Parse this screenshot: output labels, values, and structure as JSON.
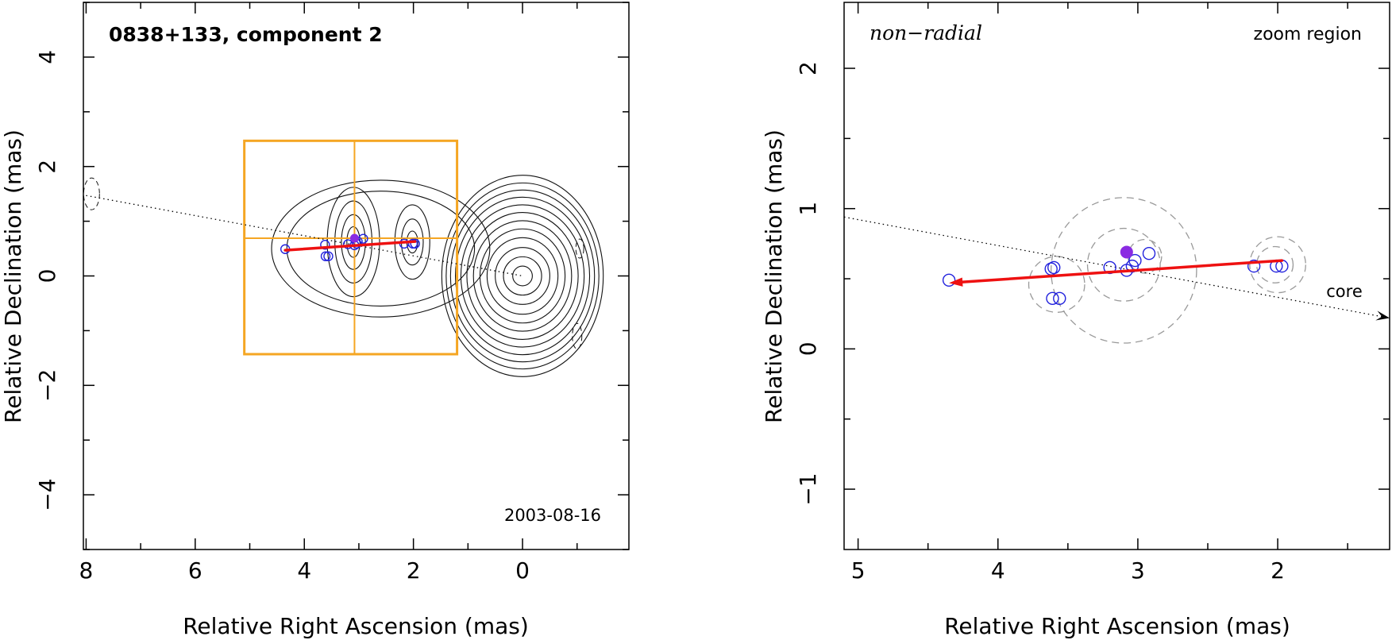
{
  "colors": {
    "track": "#ee1111",
    "component": "#2222dd",
    "mean_position": "#8a2be2",
    "zoom_box": "#f5a623",
    "contour": "#111111",
    "error_circle": "#9a9a9a"
  },
  "chart_data": [
    {
      "type": "scatter",
      "panel": "left",
      "title": "0838+133, component 2",
      "date": "2003-08-16",
      "xlabel": "Relative Right Ascension (mas)",
      "ylabel": "Relative Declination (mas)",
      "xlim": [
        8.05,
        -1.95
      ],
      "ylim": [
        -5,
        5
      ],
      "xticks": [
        8,
        6,
        4,
        2,
        0
      ],
      "yticks": [
        4,
        2,
        0,
        -2,
        -4
      ],
      "xtick_labels": [
        "8",
        "6",
        "4",
        "2",
        "0"
      ],
      "ytick_labels": [
        "4",
        "2",
        "0",
        "−2",
        "−4"
      ],
      "component_positions": [
        {
          "x": 4.35,
          "y": 0.49
        },
        {
          "x": 3.62,
          "y": 0.57
        },
        {
          "x": 3.61,
          "y": 0.36
        },
        {
          "x": 3.56,
          "y": 0.36
        },
        {
          "x": 3.2,
          "y": 0.58
        },
        {
          "x": 3.08,
          "y": 0.56
        },
        {
          "x": 3.04,
          "y": 0.59
        },
        {
          "x": 3.02,
          "y": 0.63
        },
        {
          "x": 2.92,
          "y": 0.68
        },
        {
          "x": 2.17,
          "y": 0.59
        },
        {
          "x": 2.01,
          "y": 0.59
        },
        {
          "x": 1.97,
          "y": 0.59
        }
      ],
      "mean_position": {
        "x": 3.08,
        "y": 0.69
      },
      "trajectory_arrow": {
        "from": {
          "x": 1.97,
          "y": 0.63
        },
        "to": {
          "x": 4.35,
          "y": 0.47
        }
      },
      "radial_line": {
        "from": {
          "x": 8.0,
          "y": 1.47
        },
        "to": {
          "x": 0.0,
          "y": 0.0
        }
      },
      "zoom_box": {
        "x0": 5.1,
        "x1": 1.2,
        "y0": -1.43,
        "y1": 2.47,
        "cross_x": 3.08,
        "cross_y": 0.69
      },
      "contour_groups": [
        {
          "cx": 0.0,
          "cy": 0.0,
          "rx": [
            0.18,
            0.35,
            0.5,
            0.65,
            0.78,
            0.9,
            1.02,
            1.13,
            1.23,
            1.32,
            1.4,
            1.48
          ],
          "ry": [
            0.18,
            0.35,
            0.52,
            0.7,
            0.86,
            1.01,
            1.16,
            1.3,
            1.44,
            1.57,
            1.7,
            1.84
          ]
        },
        {
          "cx": 3.1,
          "cy": 0.62,
          "rx": [
            0.12,
            0.22,
            0.34,
            0.48
          ],
          "ry": [
            0.28,
            0.5,
            0.75,
            1.0
          ]
        },
        {
          "cx": 2.02,
          "cy": 0.62,
          "rx": [
            0.1,
            0.2,
            0.32
          ],
          "ry": [
            0.2,
            0.42,
            0.68
          ]
        },
        {
          "cx": 2.6,
          "cy": 0.5,
          "rx": [
            1.72,
            2.0
          ],
          "ry": [
            1.05,
            1.25
          ]
        }
      ]
    },
    {
      "type": "scatter",
      "panel": "right",
      "title_left": "non−radial",
      "title_right": "zoom region",
      "core_label": "core",
      "xlabel": "Relative Right Ascension (mas)",
      "ylabel": "Relative Declination (mas)",
      "xlim": [
        5.1,
        1.2
      ],
      "ylim": [
        -1.43,
        2.47
      ],
      "xticks": [
        5,
        4,
        3,
        2
      ],
      "yticks": [
        2,
        1,
        0,
        -1
      ],
      "xtick_labels": [
        "5",
        "4",
        "3",
        "2"
      ],
      "ytick_labels": [
        "2",
        "1",
        "0",
        "−1"
      ],
      "component_positions": [
        {
          "x": 4.35,
          "y": 0.49
        },
        {
          "x": 3.62,
          "y": 0.57
        },
        {
          "x": 3.6,
          "y": 0.58
        },
        {
          "x": 3.61,
          "y": 0.36
        },
        {
          "x": 3.56,
          "y": 0.36
        },
        {
          "x": 3.2,
          "y": 0.58
        },
        {
          "x": 3.08,
          "y": 0.56
        },
        {
          "x": 3.04,
          "y": 0.59
        },
        {
          "x": 3.02,
          "y": 0.63
        },
        {
          "x": 2.92,
          "y": 0.68
        },
        {
          "x": 2.17,
          "y": 0.59
        },
        {
          "x": 2.01,
          "y": 0.59
        },
        {
          "x": 1.97,
          "y": 0.59
        }
      ],
      "error_circles": [
        {
          "x": 3.1,
          "y": 0.56,
          "r": 0.52
        },
        {
          "x": 3.1,
          "y": 0.6,
          "r": 0.26
        },
        {
          "x": 3.58,
          "y": 0.46,
          "r": 0.2
        },
        {
          "x": 2.95,
          "y": 0.66,
          "r": 0.12
        },
        {
          "x": 2.0,
          "y": 0.6,
          "r": 0.2
        },
        {
          "x": 2.02,
          "y": 0.6,
          "r": 0.13
        }
      ],
      "mean_position": {
        "x": 3.08,
        "y": 0.69
      },
      "trajectory_arrow": {
        "from": {
          "x": 1.97,
          "y": 0.63
        },
        "to": {
          "x": 4.35,
          "y": 0.47
        }
      },
      "radial_line": {
        "from": {
          "x": 5.1,
          "y": 0.94
        },
        "to": {
          "x": 1.2,
          "y": 0.22
        }
      }
    }
  ]
}
